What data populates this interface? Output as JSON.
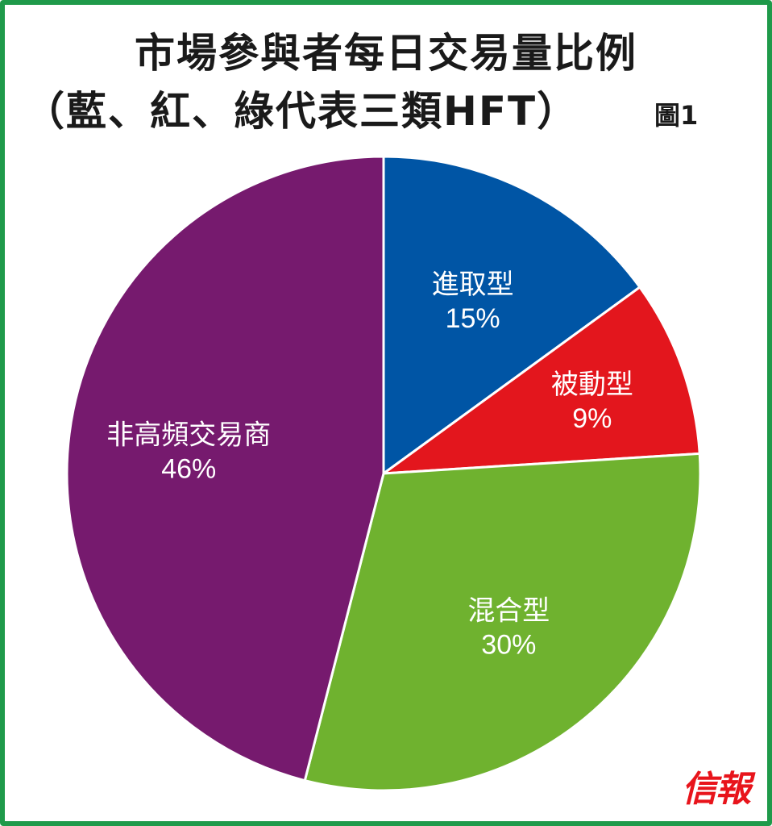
{
  "chart_data": {
    "type": "pie",
    "title": "市場參與者每日交易量比例",
    "subtitle": "（藍、紅、綠代表三類HFT）",
    "figure_label": "圖1",
    "start_angle_deg": 0,
    "direction": "clockwise",
    "slices": [
      {
        "name": "進取型",
        "value": 15,
        "label": "15%",
        "color": "#0055a5"
      },
      {
        "name": "被動型",
        "value": 9,
        "label": "9%",
        "color": "#e3161d"
      },
      {
        "name": "混合型",
        "value": 30,
        "label": "30%",
        "color": "#6fb22f"
      },
      {
        "name": "非高頻交易商",
        "value": 46,
        "label": "46%",
        "color": "#761a6e"
      }
    ]
  },
  "brand": "信報"
}
